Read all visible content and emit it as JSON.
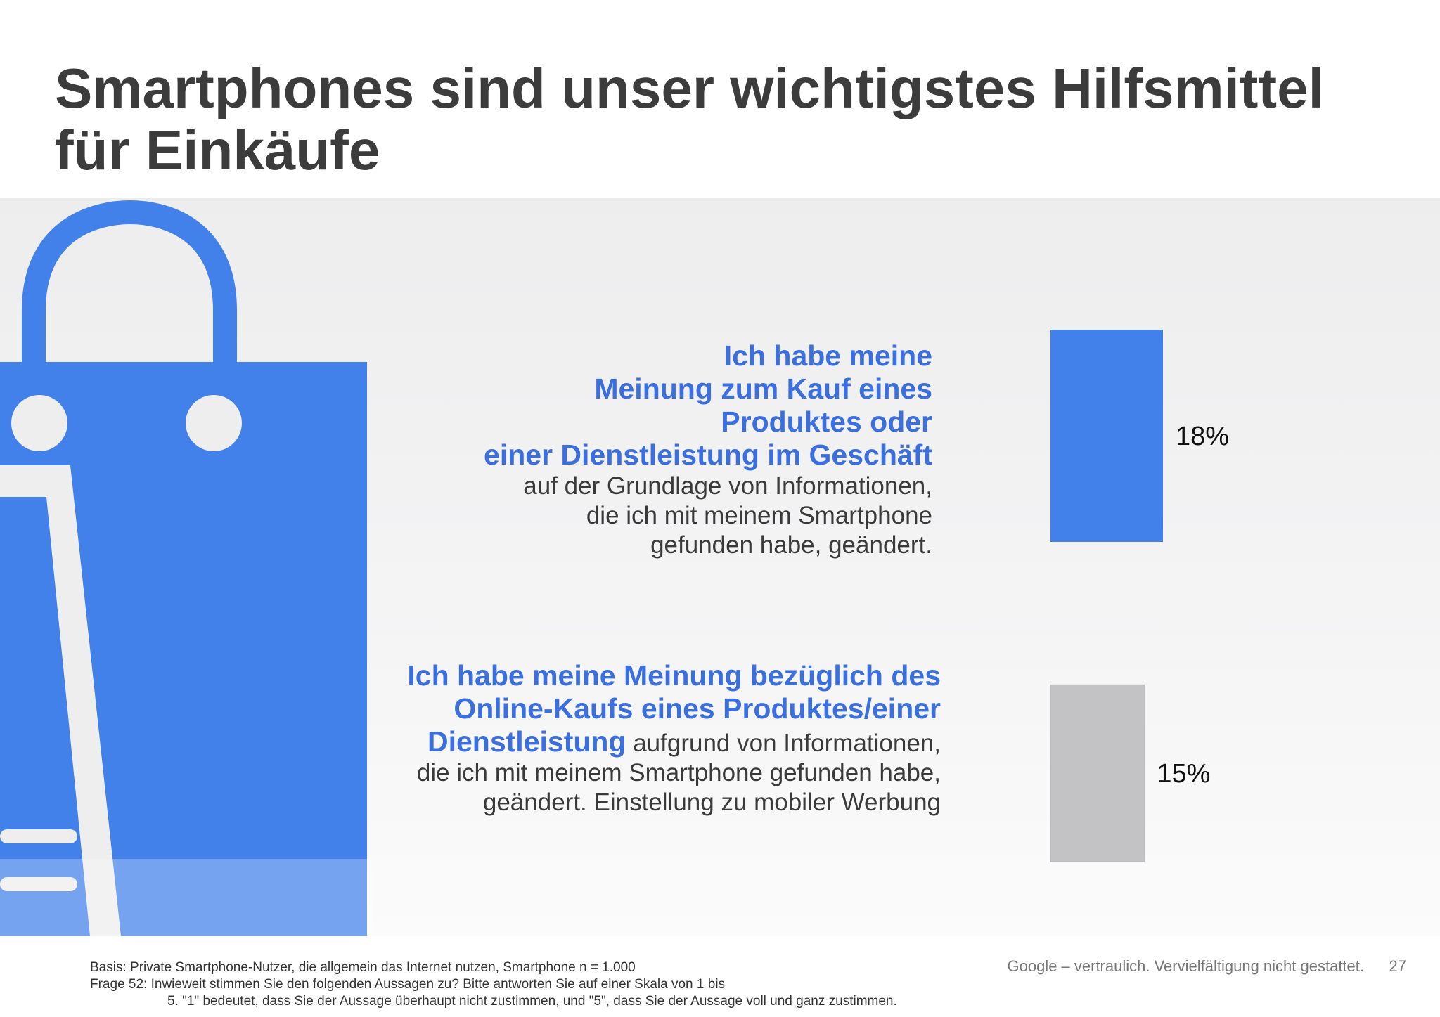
{
  "title": "Smartphones sind unser wichtigstes Hilfsmittel für Einkäufe",
  "colors": {
    "accent": "#4280ea",
    "accent_text": "#3b6fe0",
    "gray_bar": "#c3c3c5"
  },
  "statements": [
    {
      "highlight_lines": [
        "Ich habe meine",
        "Meinung zum Kauf eines",
        "Produktes oder",
        "einer Dienstleistung im Geschäft"
      ],
      "rest_lines": [
        "auf der Grundlage von Informationen,",
        "die ich mit meinem Smartphone",
        "gefunden habe, geändert."
      ]
    },
    {
      "line1": "Ich habe meine Meinung bezüglich des",
      "line2": "Online-Kaufs eines Produktes/einer",
      "line3_highlight": "Dienstleistung",
      "line3_rest": " aufgrund von Informationen,",
      "line4": "die ich mit meinem Smartphone gefunden habe,",
      "line5": "geändert. Einstellung zu mobiler Werbung"
    }
  ],
  "chart_data": {
    "type": "bar",
    "orientation": "vertical",
    "categories": [
      "Meinung zum Kauf im Geschäft geändert",
      "Meinung zum Online-Kauf geändert"
    ],
    "values": [
      18,
      15
    ],
    "value_labels": [
      "18%",
      "15%"
    ],
    "bar_colors": [
      "#4280ea",
      "#c3c3c5"
    ],
    "unit": "%",
    "title": "",
    "xlabel": "",
    "ylabel": ""
  },
  "footnote": {
    "line1": "Basis: Private Smartphone-Nutzer, die allgemein das Internet nutzen, Smartphone n = 1.000",
    "line2": "Frage 52: Inwieweit stimmen Sie den folgenden Aussagen zu? Bitte antworten Sie auf einer Skala von 1 bis",
    "line3": "5. \"1\" bedeutet, dass Sie der Aussage überhaupt nicht zustimmen, und \"5\", dass Sie der Aussage voll und ganz zustimmen."
  },
  "confidential": "Google – vertraulich. Vervielfältigung nicht gestattet.",
  "page_number": "27"
}
